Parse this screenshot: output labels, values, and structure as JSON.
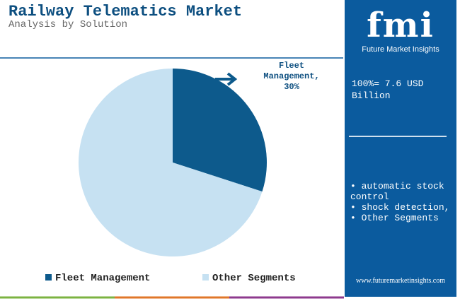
{
  "chart_data": {
    "type": "pie",
    "title": "Railway Telematics Market",
    "subtitle": "Analysis by Solution",
    "categories": [
      "Fleet Management",
      "Other Segments"
    ],
    "values": [
      30,
      70
    ],
    "value_labels": [
      "Fleet Management, 30%",
      null
    ],
    "colors": [
      "#0d5a8c",
      "#c6e1f2"
    ],
    "legend": "bottom"
  },
  "panel": {
    "logo": "fmi",
    "tagline": "Future Market Insights",
    "total_lines": [
      "100%= 7.6 USD",
      "Billion"
    ],
    "bullets": [
      "automatic stock control",
      "shock detection,",
      "Other Segments"
    ],
    "website": "www.futuremarketinsights.com"
  }
}
